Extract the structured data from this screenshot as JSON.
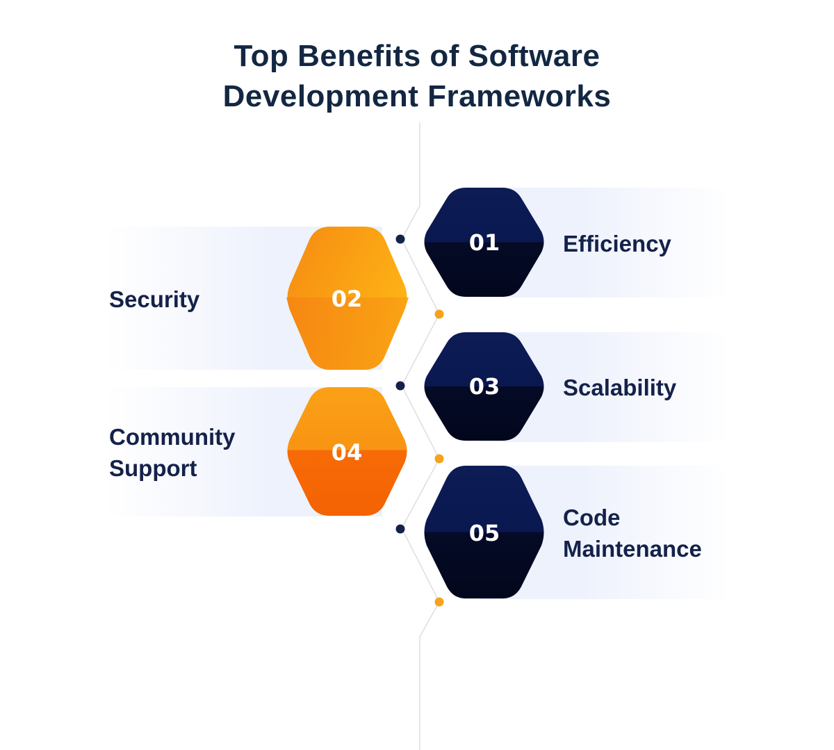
{
  "title": {
    "line1": "Top Benefits of Software",
    "line2": "Development Frameworks"
  },
  "colors": {
    "navy_top": "#0b1a52",
    "navy_bottom": "#040925",
    "orange_light": "#fdb515",
    "orange": "#f7941d",
    "orange_dark": "#f76707",
    "title_text": "#132742",
    "band": "#eef2fc",
    "line": "#d8d8d8"
  },
  "items": [
    {
      "number": "01",
      "label_line1": "Efficiency",
      "label_line2": "",
      "side": "right",
      "style": "navy"
    },
    {
      "number": "02",
      "label_line1": "Security",
      "label_line2": "",
      "side": "left",
      "style": "orange"
    },
    {
      "number": "03",
      "label_line1": "Scalability",
      "label_line2": "",
      "side": "right",
      "style": "navy"
    },
    {
      "number": "04",
      "label_line1": "Community",
      "label_line2": "Support",
      "side": "left",
      "style": "orange"
    },
    {
      "number": "05",
      "label_line1": "Code",
      "label_line2": "Maintenance",
      "side": "right",
      "style": "navy"
    }
  ]
}
